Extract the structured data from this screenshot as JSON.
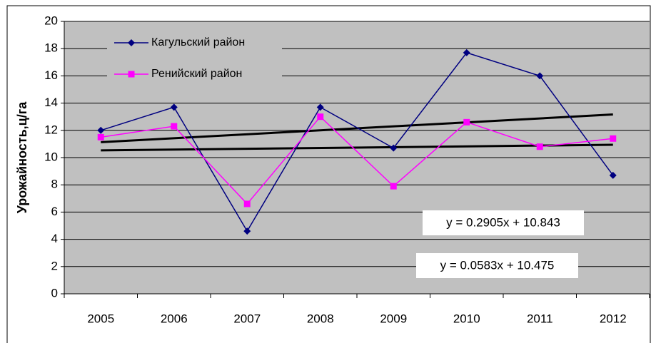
{
  "chart_data": {
    "type": "line",
    "y_label": "Урожайность,ц/га",
    "categories": [
      "2005",
      "2006",
      "2007",
      "2008",
      "2009",
      "2010",
      "2011",
      "2012"
    ],
    "series": [
      {
        "name": "Кагульский район",
        "color": "#000080",
        "marker": "diamond",
        "values": [
          12.0,
          13.7,
          4.6,
          13.7,
          10.7,
          17.7,
          16.0,
          8.7
        ]
      },
      {
        "name": "Ренийский район",
        "color": "#ff00ff",
        "marker": "square",
        "values": [
          11.5,
          12.3,
          6.6,
          13.0,
          7.9,
          12.6,
          10.8,
          11.4
        ]
      }
    ],
    "trendlines": [
      {
        "label": "y = 0.2905x + 10.843",
        "slope": 0.2905,
        "intercept": 10.843,
        "color": "#000000"
      },
      {
        "label": "y = 0.0583x + 10.475",
        "slope": 0.0583,
        "intercept": 10.475,
        "color": "#000000"
      }
    ],
    "ylim": [
      0,
      20
    ],
    "yticks": [
      0,
      2,
      4,
      6,
      8,
      10,
      12,
      14,
      16,
      18,
      20
    ],
    "grid": true,
    "plot_background": "#c0c0c0",
    "legend": "upper left"
  }
}
